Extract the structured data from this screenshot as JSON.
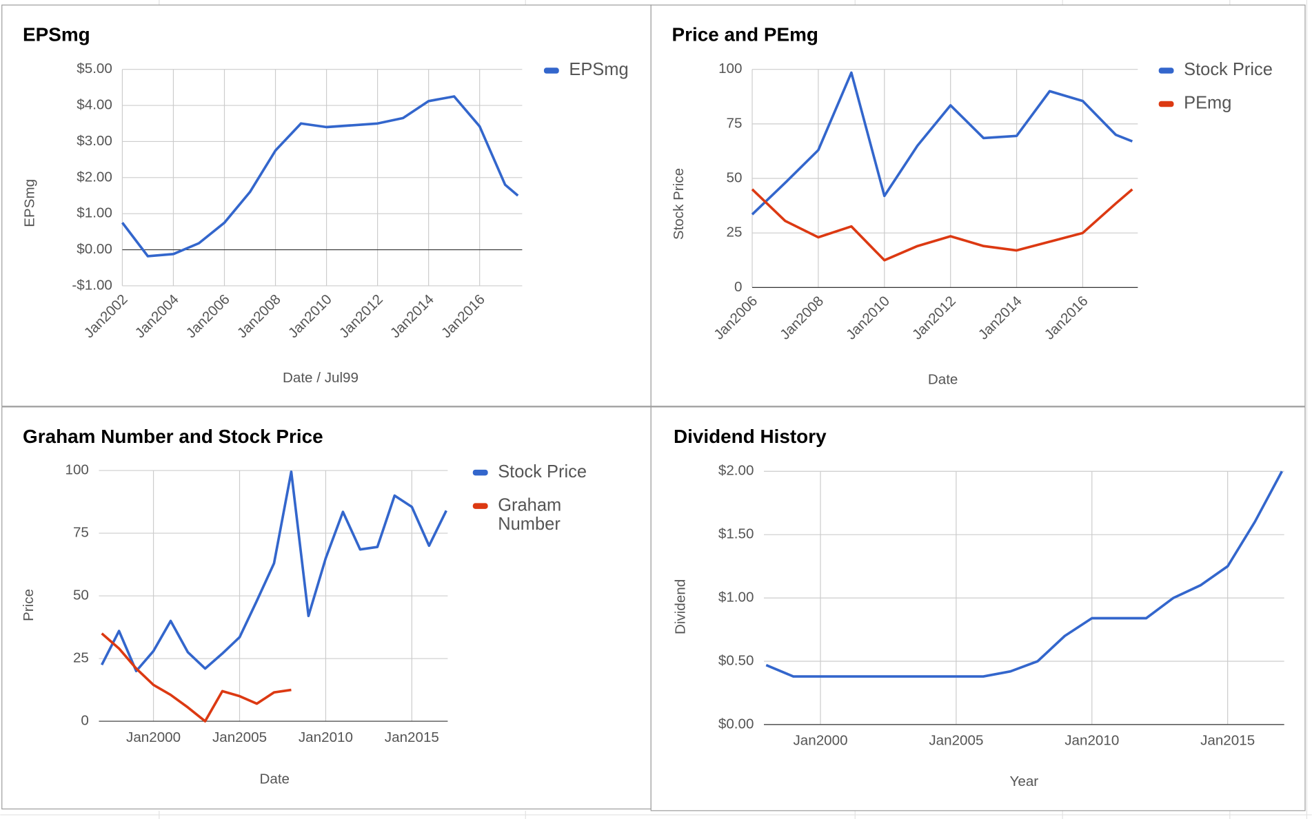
{
  "chart_data": [
    {
      "type": "line",
      "title": "EPSmg",
      "x_label": "Date / Jul99",
      "y_label": "EPSmg",
      "x": [
        "Jan2002",
        "Jan2003",
        "Jan2004",
        "Jan2005",
        "Jan2006",
        "Jan2007",
        "Jan2008",
        "Jan2009",
        "Jan2010",
        "Jan2011",
        "Jan2012",
        "Jan2013",
        "Jan2014",
        "Jan2015",
        "Jan2016",
        "Jan2017",
        "Jul2017"
      ],
      "series": [
        {
          "name": "EPSmg",
          "color": "#3366cc",
          "values": [
            0.75,
            -0.18,
            -0.12,
            0.18,
            0.75,
            1.6,
            2.75,
            3.5,
            3.4,
            3.45,
            3.5,
            3.65,
            4.12,
            4.25,
            3.42,
            1.8,
            1.5
          ]
        }
      ],
      "xlim": [
        "Jan2002",
        "Sep2017"
      ],
      "xticks": [
        "Jan2002",
        "Jan2004",
        "Jan2006",
        "Jan2008",
        "Jan2010",
        "Jan2012",
        "Jan2014",
        "Jan2016"
      ],
      "ylim": [
        -1,
        5
      ],
      "yticks": [
        {
          "value": -1,
          "label": "-$1.00"
        },
        {
          "value": 0,
          "label": "$0.00"
        },
        {
          "value": 1,
          "label": "$1.00"
        },
        {
          "value": 2,
          "label": "$2.00"
        },
        {
          "value": 3,
          "label": "$3.00"
        },
        {
          "value": 4,
          "label": "$4.00"
        },
        {
          "value": 5,
          "label": "$5.00"
        }
      ],
      "grid": true,
      "legend": "right"
    },
    {
      "type": "line",
      "title": "Price and PEmg",
      "x_label": "Date",
      "y_label": "Stock Price",
      "x": [
        "Jan2006",
        "Jan2007",
        "Jan2008",
        "Jan2009",
        "Jan2010",
        "Jan2011",
        "Jan2012",
        "Jan2013",
        "Jan2014",
        "Jan2015",
        "Jan2016",
        "Jan2017",
        "Jul2017"
      ],
      "series": [
        {
          "name": "Stock Price",
          "color": "#3366cc",
          "values": [
            33.5,
            48,
            63,
            98.5,
            42,
            65,
            83.5,
            68.5,
            69.5,
            90,
            85.5,
            70,
            67
          ]
        },
        {
          "name": "PEmg",
          "color": "#dc3912",
          "values": [
            45,
            30.5,
            23,
            28,
            12.5,
            19,
            23.5,
            19,
            17,
            21,
            25,
            38.5,
            45
          ]
        }
      ],
      "xlim": [
        "Jan2006",
        "Sep2017"
      ],
      "xticks": [
        "Jan2006",
        "Jan2008",
        "Jan2010",
        "Jan2012",
        "Jan2014",
        "Jan2016"
      ],
      "ylim": [
        0,
        100
      ],
      "yticks": [
        0,
        25,
        50,
        75,
        100
      ],
      "grid": true,
      "legend": "right"
    },
    {
      "type": "line",
      "title": "Graham Number and Stock Price",
      "x_label": "Date",
      "y_label": "Price",
      "x": [
        "Jan1997",
        "Jan1998",
        "Jan1999",
        "Jan2000",
        "Jan2001",
        "Jan2002",
        "Jan2003",
        "Jan2004",
        "Jan2005",
        "Jan2006",
        "Jan2007",
        "Jan2008",
        "Jan2009",
        "Jan2010",
        "Jan2011",
        "Jan2012",
        "Jan2013",
        "Jan2014",
        "Jan2015",
        "Jan2016",
        "Jan2017"
      ],
      "series": [
        {
          "name": "Stock Price",
          "color": "#3366cc",
          "values": [
            22.5,
            36,
            20,
            28,
            40,
            27.5,
            21,
            27,
            33.5,
            48,
            63,
            99.5,
            42,
            65,
            83.5,
            68.5,
            69.5,
            90,
            85.5,
            70,
            84
          ]
        },
        {
          "name": "Graham Number",
          "color": "#dc3912",
          "values": [
            35,
            29,
            21,
            14.5,
            10.5,
            5.5,
            0,
            12,
            10,
            7,
            11.5,
            12.5,
            null,
            null,
            null,
            null,
            null,
            null,
            null,
            null,
            null
          ]
        }
      ],
      "xlim": [
        "Nov1996",
        "Feb2017"
      ],
      "xticks": [
        "Jan2000",
        "Jan2005",
        "Jan2010",
        "Jan2015"
      ],
      "ylim": [
        0,
        100
      ],
      "yticks": [
        0,
        25,
        50,
        75,
        100
      ],
      "grid": true,
      "legend": "right"
    },
    {
      "type": "line",
      "title": "Dividend History",
      "x_label": "Year",
      "y_label": "Dividend",
      "x": [
        "Jan1998",
        "Jan1999",
        "Jan2000",
        "Jan2001",
        "Jan2002",
        "Jan2003",
        "Jan2004",
        "Jan2005",
        "Jan2006",
        "Jan2007",
        "Jan2008",
        "Jan2009",
        "Jan2010",
        "Jan2011",
        "Jan2012",
        "Jan2013",
        "Jan2014",
        "Jan2015",
        "Jan2016",
        "Jan2017"
      ],
      "series": [
        {
          "color": "#3366cc",
          "values": [
            0.47,
            0.38,
            0.38,
            0.38,
            0.38,
            0.38,
            0.38,
            0.38,
            0.38,
            0.42,
            0.5,
            0.7,
            0.84,
            0.84,
            0.84,
            1.0,
            1.1,
            1.25,
            1.6,
            2.0
          ]
        }
      ],
      "xlim": [
        "Dec1997",
        "Feb2017"
      ],
      "xticks": [
        "Jan2000",
        "Jan2005",
        "Jan2010",
        "Jan2015"
      ],
      "ylim": [
        0,
        2
      ],
      "yticks": [
        {
          "value": 0,
          "label": "$0.00"
        },
        {
          "value": 0.5,
          "label": "$0.50"
        },
        {
          "value": 1,
          "label": "$1.00"
        },
        {
          "value": 1.5,
          "label": "$1.50"
        },
        {
          "value": 2,
          "label": "$2.00"
        }
      ],
      "grid": true,
      "legend": "none"
    }
  ]
}
